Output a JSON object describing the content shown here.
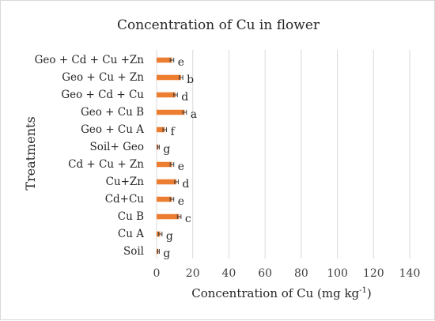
{
  "chart_data": {
    "type": "bar",
    "orientation": "horizontal",
    "title": "Concentration of Cu in flower",
    "xlabel": "Concentration of Cu  (mg kg",
    "xlabel_superscript": "-1",
    "xlabel_suffix": ")",
    "ylabel": "Treatments",
    "xlim": [
      0,
      140
    ],
    "xticks": [
      0,
      20,
      40,
      60,
      80,
      100,
      120,
      140
    ],
    "grid": true,
    "bar_color": "#ED7D31",
    "categories": [
      "Geo +  Cd + Cu +Zn",
      "Geo + Cu + Zn",
      "Geo + Cd + Cu",
      "Geo + Cu B",
      "Geo + Cu A",
      "Soil+  Geo",
      "Cd + Cu + Zn",
      "Cu+Zn",
      "Cd+Cu",
      "Cu B",
      "Cu A",
      "Soil"
    ],
    "values": [
      8.5,
      13.5,
      10.5,
      15.5,
      4.5,
      1.0,
      8.5,
      11.0,
      8.5,
      12.5,
      2.0,
      1.0
    ],
    "errors": [
      1.0,
      1.0,
      1.0,
      1.0,
      1.0,
      0.5,
      1.0,
      1.0,
      1.0,
      1.0,
      1.0,
      0.5
    ],
    "letters": [
      "e",
      "b",
      "d",
      "a",
      "f",
      "g",
      "e",
      "d",
      "e",
      "c",
      "g",
      "g"
    ]
  }
}
